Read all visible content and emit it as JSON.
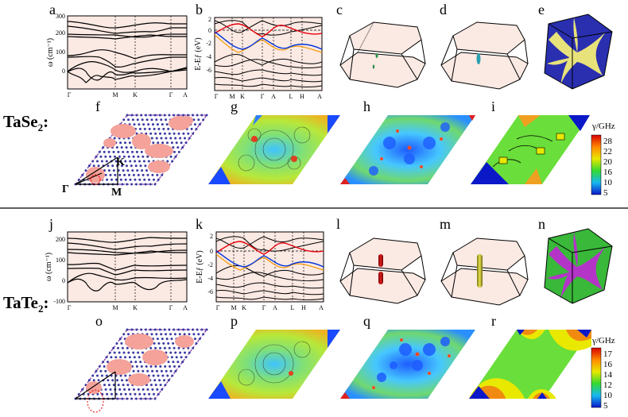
{
  "top": {
    "material": "TaSe",
    "material_sub": "2",
    "material_suffix": ":",
    "panel_labels": [
      "a",
      "b",
      "c",
      "d",
      "e",
      "f",
      "g",
      "h",
      "i"
    ],
    "phonon": {
      "ylabel": "ω (cm⁻¹)",
      "yticks": [
        "300",
        "200",
        "100",
        "0"
      ],
      "xticks": [
        "Γ",
        "M",
        "K",
        "Γ",
        "A"
      ]
    },
    "bands": {
      "ylabel": "E-Eƒ (eV)",
      "yticks": [
        "2",
        "0",
        "-2",
        "-4",
        "-6"
      ],
      "xticks": [
        "Γ",
        "M",
        "K",
        "Γ",
        "A",
        "L",
        "H",
        "A"
      ]
    },
    "lattice_points": {
      "gamma": "Γ",
      "k": "K",
      "m": "M"
    },
    "colorbar": {
      "title": "γ/GHz",
      "ticks": [
        "28",
        "22",
        "20",
        "16",
        "10",
        "5"
      ]
    }
  },
  "bottom": {
    "material": "TaTe",
    "material_sub": "2",
    "material_suffix": ":",
    "panel_labels": [
      "j",
      "k",
      "l",
      "m",
      "n",
      "o",
      "p",
      "q",
      "r"
    ],
    "phonon": {
      "ylabel": "ω (cm⁻¹)",
      "yticks": [
        "200",
        "100",
        "0",
        "-100"
      ],
      "xticks": [
        "Γ",
        "M",
        "K",
        "Γ",
        "A"
      ]
    },
    "bands": {
      "ylabel": "E-Eƒ (eV)",
      "yticks": [
        "2",
        "0",
        "-2",
        "-4",
        "-6"
      ],
      "xticks": [
        "Γ",
        "M",
        "K",
        "Γ",
        "A",
        "L",
        "H",
        "A"
      ]
    },
    "colorbar": {
      "title": "γ/GHz",
      "ticks": [
        "17",
        "16",
        "14",
        "12",
        "10",
        "5"
      ]
    }
  },
  "colors": {
    "panel_bg": "#fbe9e3",
    "band_red": "#e8000b",
    "band_blue": "#0033dd",
    "band_orange": "#f5a01a",
    "fs_yellow": "#e8e27a",
    "fs_blue": "#2a2fb0",
    "fs_green": "#39b839",
    "fs_magenta": "#b534c8",
    "lattice_dot": "#3a3aa0",
    "cluster": "#f4a29a"
  }
}
